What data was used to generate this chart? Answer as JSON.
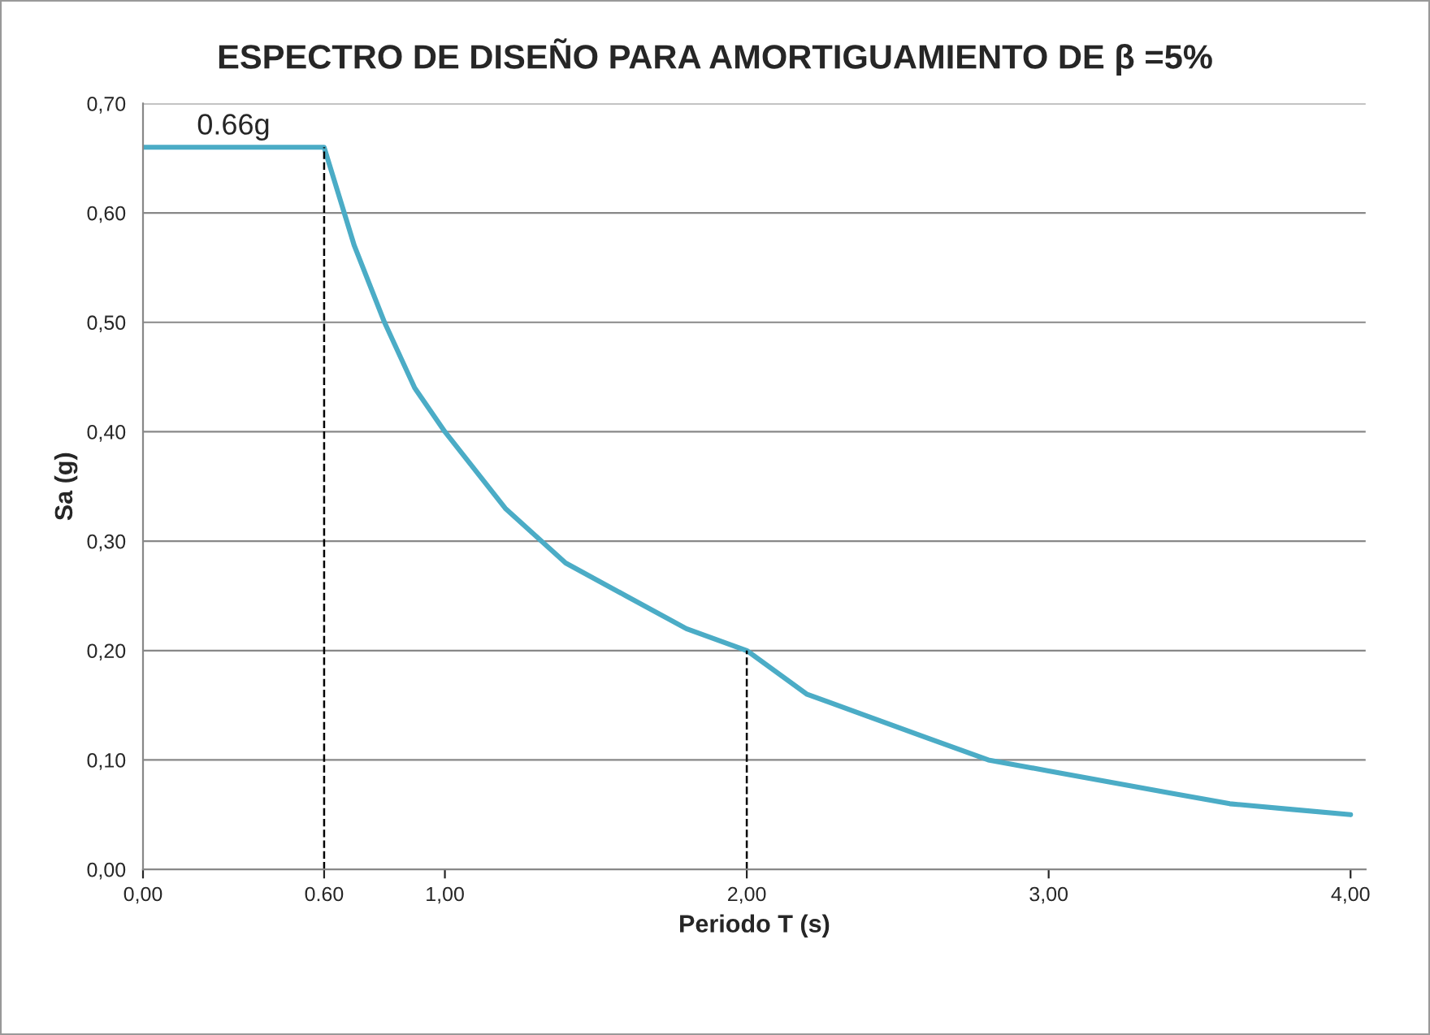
{
  "chart_data": {
    "type": "line",
    "title": "ESPECTRO DE DISEÑO PARA AMORTIGUAMIENTO DE β =5%",
    "xlabel": "Periodo T (s)",
    "ylabel": "Sa (g)",
    "x": [
      0,
      0.6,
      0.7,
      0.8,
      0.9,
      1.0,
      1.2,
      1.4,
      1.6,
      1.8,
      2.0,
      2.2,
      2.4,
      2.6,
      2.8,
      3.0,
      3.2,
      3.4,
      3.6,
      3.8,
      4.0
    ],
    "series": [
      {
        "color": "#4bacc6",
        "values": [
          0.66,
          0.66,
          0.57,
          0.5,
          0.44,
          0.4,
          0.33,
          0.28,
          0.25,
          0.22,
          0.2,
          0.16,
          0.14,
          0.12,
          0.1,
          0.09,
          0.08,
          0.07,
          0.06,
          0.055,
          0.05
        ]
      }
    ],
    "xlim": [
      0,
      4.05
    ],
    "ylim": [
      0,
      0.7
    ],
    "xticks": [
      {
        "value": 0,
        "label": "0,00"
      },
      {
        "value": 0.6,
        "label": "0.60"
      },
      {
        "value": 1,
        "label": "1,00"
      },
      {
        "value": 2,
        "label": "2,00"
      },
      {
        "value": 3,
        "label": "3,00"
      },
      {
        "value": 4,
        "label": "4,00"
      }
    ],
    "yticks": [
      {
        "value": 0,
        "label": "0,00"
      },
      {
        "value": 0.1,
        "label": "0,10"
      },
      {
        "value": 0.2,
        "label": "0,20"
      },
      {
        "value": 0.3,
        "label": "0,30"
      },
      {
        "value": 0.4,
        "label": "0,40"
      },
      {
        "value": 0.5,
        "label": "0,50"
      },
      {
        "value": 0.6,
        "label": "0,60"
      },
      {
        "value": 0.7,
        "label": "0,70"
      }
    ],
    "ref_lines": [
      {
        "axis": "x",
        "value": 0.6,
        "color": "#000000",
        "line_style": "dashed"
      },
      {
        "axis": "x",
        "value": 2.0,
        "color": "#000000",
        "line_style": "dashed"
      }
    ],
    "annotations": [
      {
        "text": "0.66g",
        "x": 0.3,
        "y": 0.66
      }
    ],
    "grid": "y",
    "legend": false,
    "marker": "none",
    "line_style": "solid"
  }
}
